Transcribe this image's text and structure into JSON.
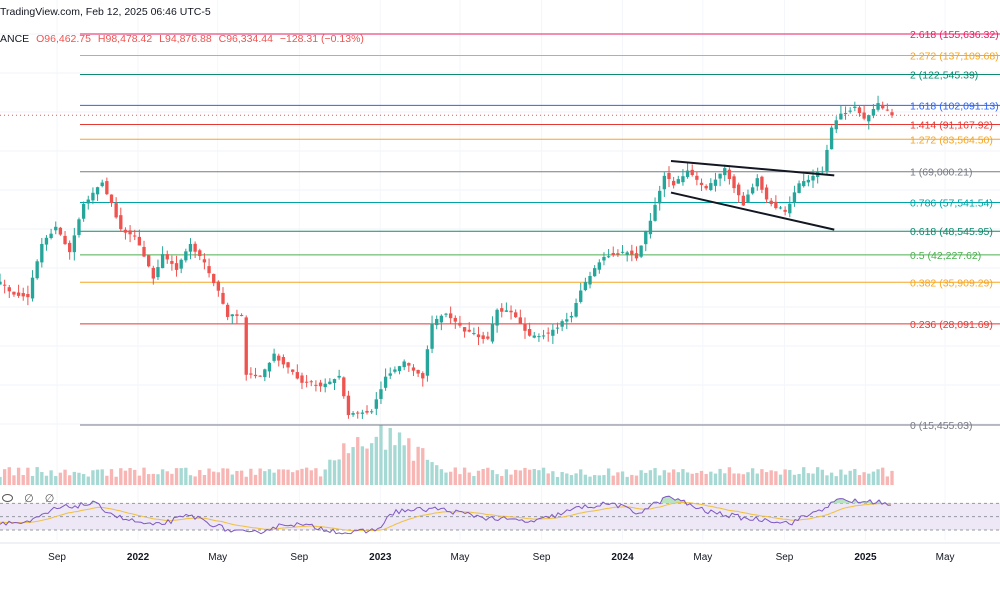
{
  "header": {
    "source_date": "TradingView.com, Feb 12, 2025 06:46 UTC-5",
    "exchange": "ANCE",
    "open": "O96,462.75",
    "high": "H98,478.42",
    "low": "L94,876.88",
    "close": "C96,334.44",
    "change": "−128.31 (−0.13%)"
  },
  "rsi_header": {
    "eye_icon": "eye-icon",
    "slash_icon_1": "∅",
    "slash_icon_2": "∅"
  },
  "colors": {
    "up": "#26a69a",
    "down": "#ef5350",
    "vol_up": "#a7d9d4",
    "vol_down": "#f7b6b4",
    "rsi_line": "#7e57c2",
    "rsi_ma": "#f0c040",
    "rsi_band": "#ede7f6"
  },
  "chart_data": {
    "type": "candlestick",
    "y_scale": "log",
    "price_axis_range": [
      11000,
      190000
    ],
    "x_axis_ticks": [
      "Sep",
      "2022",
      "May",
      "Sep",
      "2023",
      "May",
      "Sep",
      "2024",
      "May",
      "Sep",
      "2025",
      "May"
    ],
    "year_ticks": [
      "2022",
      "2023",
      "2024",
      "2025"
    ],
    "fib_levels": [
      {
        "text": "2.618 (155,636.32)",
        "value": 155636.32,
        "color": "#e91e63"
      },
      {
        "text": "2.272 (137,109.68)",
        "value": 137109.68,
        "color": "#f5a623"
      },
      {
        "text": "2 (122,545.39)",
        "value": 122545.39,
        "color": "#0e8a6e"
      },
      {
        "text": "1.618 (102,091.13)",
        "value": 102091.13,
        "color": "#2962ff"
      },
      {
        "text": "1.414 (91,167.92)",
        "value": 91167.92,
        "color": "#e53935"
      },
      {
        "text": "1.272 (83,564.50)",
        "value": 83564.5,
        "color": "#f5a623"
      },
      {
        "text": "1 (69,000.21)",
        "value": 69000.21,
        "color": "#787b86"
      },
      {
        "text": "0.786 (57,541.54)",
        "value": 57541.54,
        "color": "#00a4a6"
      },
      {
        "text": "0.618 (48,545.95)",
        "value": 48545.95,
        "color": "#0e8a6e"
      },
      {
        "text": "0.5 (42,227.62)",
        "value": 42227.62,
        "color": "#4caf50"
      },
      {
        "text": "0.382 (35,909.29)",
        "value": 35909.29,
        "color": "#f5a623"
      },
      {
        "text": "0.236 (28,091.69)",
        "value": 28091.69,
        "color": "#e53935"
      },
      {
        "text": "0 (15,455.03)",
        "value": 15455.03,
        "color": "#787b86"
      }
    ],
    "last_price": 96334.44,
    "channel": {
      "upper": [
        {
          "date": "2024-03-14",
          "price": 73500
        },
        {
          "date": "2024-11-15",
          "price": 67500
        }
      ],
      "lower": [
        {
          "date": "2024-03-14",
          "price": 61000
        },
        {
          "date": "2024-11-15",
          "price": 49000
        }
      ]
    },
    "weekly_close_path": [
      [
        "2021-06-07",
        35800
      ],
      [
        "2021-06-28",
        33500
      ],
      [
        "2021-07-19",
        33000
      ],
      [
        "2021-08-09",
        45000
      ],
      [
        "2021-08-30",
        50000
      ],
      [
        "2021-09-20",
        43000
      ],
      [
        "2021-10-11",
        57000
      ],
      [
        "2021-10-25",
        61000
      ],
      [
        "2021-11-08",
        64500
      ],
      [
        "2021-11-22",
        57000
      ],
      [
        "2021-12-06",
        49000
      ],
      [
        "2021-12-27",
        47000
      ],
      [
        "2022-01-10",
        42000
      ],
      [
        "2022-01-24",
        37000
      ],
      [
        "2022-02-07",
        42000
      ],
      [
        "2022-02-28",
        39000
      ],
      [
        "2022-03-21",
        45000
      ],
      [
        "2022-04-11",
        40000
      ],
      [
        "2022-05-02",
        34000
      ],
      [
        "2022-05-16",
        29500
      ],
      [
        "2022-06-06",
        29500
      ],
      [
        "2022-06-13",
        21000
      ],
      [
        "2022-07-04",
        20500
      ],
      [
        "2022-07-25",
        23500
      ],
      [
        "2022-08-15",
        21500
      ],
      [
        "2022-09-05",
        20000
      ],
      [
        "2022-10-03",
        19500
      ],
      [
        "2022-10-31",
        20500
      ],
      [
        "2022-11-14",
        16500
      ],
      [
        "2022-12-19",
        16800
      ],
      [
        "2023-01-09",
        20500
      ],
      [
        "2023-02-06",
        22500
      ],
      [
        "2023-03-06",
        20500
      ],
      [
        "2023-03-20",
        28000
      ],
      [
        "2023-04-10",
        30000
      ],
      [
        "2023-05-08",
        27000
      ],
      [
        "2023-06-12",
        25500
      ],
      [
        "2023-06-26",
        30500
      ],
      [
        "2023-07-17",
        30000
      ],
      [
        "2023-08-14",
        26000
      ],
      [
        "2023-09-11",
        26500
      ],
      [
        "2023-10-16",
        29500
      ],
      [
        "2023-10-30",
        34500
      ],
      [
        "2023-12-04",
        42000
      ],
      [
        "2024-01-08",
        43000
      ],
      [
        "2024-01-22",
        41500
      ],
      [
        "2024-02-12",
        52000
      ],
      [
        "2024-03-04",
        68000
      ],
      [
        "2024-03-18",
        64000
      ],
      [
        "2024-04-08",
        69000
      ],
      [
        "2024-05-06",
        62000
      ],
      [
        "2024-06-03",
        70000
      ],
      [
        "2024-07-01",
        57000
      ],
      [
        "2024-07-22",
        67000
      ],
      [
        "2024-08-05",
        58000
      ],
      [
        "2024-09-02",
        54500
      ],
      [
        "2024-09-23",
        64000
      ],
      [
        "2024-10-14",
        67500
      ],
      [
        "2024-10-28",
        69500
      ],
      [
        "2024-11-11",
        89000
      ],
      [
        "2024-11-25",
        97000
      ],
      [
        "2024-12-16",
        101000
      ],
      [
        "2024-12-30",
        94000
      ],
      [
        "2025-01-20",
        103000
      ],
      [
        "2025-02-10",
        96334
      ]
    ],
    "rsi": {
      "overbought": 70,
      "oversold": 30,
      "path": [
        [
          "2021-06-07",
          42
        ],
        [
          "2021-07-19",
          40
        ],
        [
          "2021-08-30",
          62
        ],
        [
          "2021-10-25",
          70
        ],
        [
          "2021-12-06",
          48
        ],
        [
          "2022-01-24",
          36
        ],
        [
          "2022-03-21",
          52
        ],
        [
          "2022-05-16",
          30
        ],
        [
          "2022-06-20",
          24
        ],
        [
          "2022-08-15",
          40
        ],
        [
          "2022-09-26",
          34
        ],
        [
          "2022-11-14",
          25
        ],
        [
          "2022-12-26",
          30
        ],
        [
          "2023-01-23",
          58
        ],
        [
          "2023-03-27",
          62
        ],
        [
          "2023-06-12",
          48
        ],
        [
          "2023-08-21",
          42
        ],
        [
          "2023-10-30",
          64
        ],
        [
          "2023-12-18",
          70
        ],
        [
          "2024-01-22",
          55
        ],
        [
          "2024-03-11",
          80
        ],
        [
          "2024-05-06",
          58
        ],
        [
          "2024-07-08",
          47
        ],
        [
          "2024-08-12",
          45
        ],
        [
          "2024-09-09",
          40
        ],
        [
          "2024-10-28",
          62
        ],
        [
          "2024-11-25",
          76
        ],
        [
          "2024-12-23",
          72
        ],
        [
          "2025-01-20",
          73
        ],
        [
          "2025-02-10",
          65
        ]
      ]
    }
  }
}
